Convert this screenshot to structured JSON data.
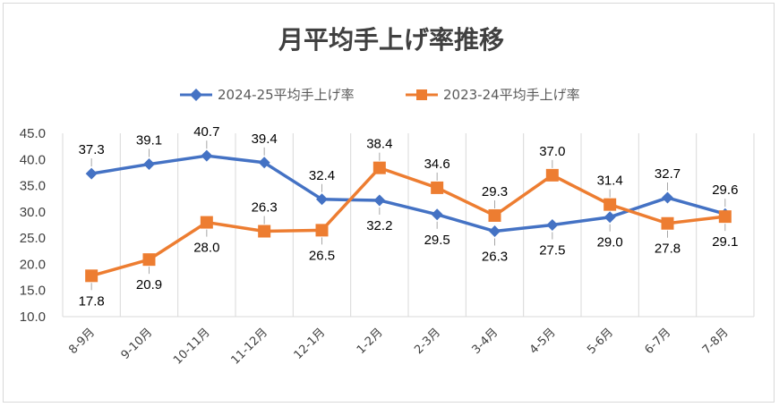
{
  "chart_data": {
    "type": "line",
    "title": "月平均手上げ率推移",
    "categories": [
      "8-9月",
      "9-10月",
      "10-11月",
      "11-12月",
      "12-1月",
      "1-2月",
      "2-3月",
      "3-4月",
      "4-5月",
      "5-6月",
      "6-7月",
      "7-8月"
    ],
    "series": [
      {
        "name": "2024-25平均手上げ率",
        "color": "#4472c4",
        "marker": "diamond",
        "values": [
          37.3,
          39.1,
          40.7,
          39.4,
          32.4,
          32.2,
          29.5,
          26.3,
          27.5,
          29.0,
          32.7,
          29.6
        ]
      },
      {
        "name": "2023-24平均手上げ率",
        "color": "#ed7d31",
        "marker": "square",
        "values": [
          17.8,
          20.9,
          28.0,
          26.3,
          26.5,
          38.4,
          34.6,
          29.3,
          37.0,
          31.4,
          27.8,
          29.1
        ]
      }
    ],
    "ylim": [
      10.0,
      45.0
    ],
    "yticks": [
      "45.0",
      "40.0",
      "35.0",
      "30.0",
      "25.0",
      "20.0",
      "15.0",
      "10.0"
    ],
    "grid": "vertical",
    "legend_position": "top"
  }
}
